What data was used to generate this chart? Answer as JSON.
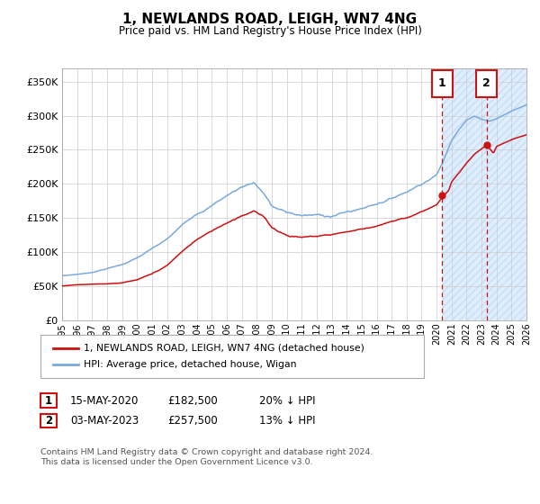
{
  "title": "1, NEWLANDS ROAD, LEIGH, WN7 4NG",
  "subtitle": "Price paid vs. HM Land Registry's House Price Index (HPI)",
  "ylabel_ticks": [
    "£0",
    "£50K",
    "£100K",
    "£150K",
    "£200K",
    "£250K",
    "£300K",
    "£350K"
  ],
  "ytick_values": [
    0,
    50000,
    100000,
    150000,
    200000,
    250000,
    300000,
    350000
  ],
  "ylim": [
    0,
    370000
  ],
  "xlim_start": 1995.0,
  "xlim_end": 2026.0,
  "hpi_color": "#7aaadd",
  "price_color": "#cc1111",
  "shade_color": "#ddeeff",
  "marker1_x": 2020.37,
  "marker2_x": 2023.34,
  "marker1_y": 182500,
  "marker2_y": 257500,
  "legend_line1": "1, NEWLANDS ROAD, LEIGH, WN7 4NG (detached house)",
  "legend_line2": "HPI: Average price, detached house, Wigan",
  "annotation1_num": "1",
  "annotation1_date": "15-MAY-2020",
  "annotation1_price": "£182,500",
  "annotation1_hpi": "20% ↓ HPI",
  "annotation2_num": "2",
  "annotation2_date": "03-MAY-2023",
  "annotation2_price": "£257,500",
  "annotation2_hpi": "13% ↓ HPI",
  "footer": "Contains HM Land Registry data © Crown copyright and database right 2024.\nThis data is licensed under the Open Government Licence v3.0.",
  "xtick_years": [
    1995,
    1996,
    1997,
    1998,
    1999,
    2000,
    2001,
    2002,
    2003,
    2004,
    2005,
    2006,
    2007,
    2008,
    2009,
    2010,
    2011,
    2012,
    2013,
    2014,
    2015,
    2016,
    2017,
    2018,
    2019,
    2020,
    2021,
    2022,
    2023,
    2024,
    2025,
    2026
  ],
  "hpi_keypoints_x": [
    1995,
    1996,
    1997,
    1998,
    1999,
    2000,
    2001,
    2002,
    2003,
    2004,
    2005,
    2006,
    2007,
    2007.8,
    2008.5,
    2009,
    2010,
    2011,
    2012,
    2013,
    2014,
    2015,
    2016,
    2017,
    2018,
    2019,
    2020,
    2020.5,
    2021,
    2021.5,
    2022,
    2022.5,
    2023,
    2023.5,
    2024,
    2025,
    2026
  ],
  "hpi_keypoints_y": [
    65000,
    67000,
    70000,
    76000,
    82000,
    92000,
    105000,
    118000,
    138000,
    157000,
    170000,
    185000,
    198000,
    206000,
    190000,
    172000,
    162000,
    158000,
    157000,
    157000,
    162000,
    167000,
    175000,
    183000,
    193000,
    205000,
    218000,
    240000,
    268000,
    285000,
    298000,
    303000,
    298000,
    295000,
    298000,
    308000,
    316000
  ],
  "price_keypoints_x": [
    1995,
    1996,
    1997,
    1998,
    1999,
    2000,
    2001,
    2002,
    2003,
    2004,
    2005,
    2006,
    2007,
    2007.8,
    2008.5,
    2009,
    2010,
    2011,
    2012,
    2013,
    2014,
    2015,
    2016,
    2017,
    2018,
    2019,
    2020,
    2020.37,
    2020.8,
    2021,
    2021.5,
    2022,
    2022.5,
    2023,
    2023.34,
    2023.8,
    2024,
    2025,
    2026
  ],
  "price_keypoints_y": [
    50000,
    52000,
    53000,
    54000,
    56000,
    60000,
    68000,
    80000,
    100000,
    118000,
    130000,
    143000,
    155000,
    163000,
    152000,
    138000,
    128000,
    126000,
    127000,
    130000,
    134000,
    138000,
    143000,
    148000,
    153000,
    162000,
    172000,
    182500,
    192000,
    205000,
    218000,
    232000,
    244000,
    252000,
    257500,
    245000,
    255000,
    265000,
    272000
  ]
}
